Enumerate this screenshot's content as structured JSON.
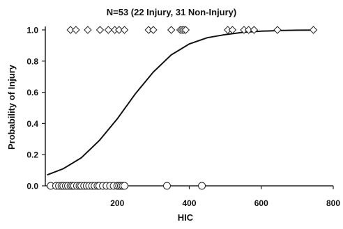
{
  "chart_data": {
    "type": "scatter",
    "title": "N=53 (22 Injury, 31 Non-Injury)",
    "xlabel": "HIC",
    "ylabel": "Probability of Injury",
    "xlim": [
      0,
      800
    ],
    "ylim": [
      0,
      1
    ],
    "x_ticks": [
      "200",
      "400",
      "600",
      "800"
    ],
    "y_ticks": [
      "0.0",
      "0.2",
      "0.4",
      "0.6",
      "0.8",
      "1.0"
    ],
    "grid": false,
    "legend": "none",
    "series": [
      {
        "marker": "diamond",
        "values": [
          {
            "x": 70,
            "y": 1
          },
          {
            "x": 85,
            "y": 1
          },
          {
            "x": 118,
            "y": 1
          },
          {
            "x": 152,
            "y": 1
          },
          {
            "x": 175,
            "y": 1
          },
          {
            "x": 193,
            "y": 1
          },
          {
            "x": 205,
            "y": 1
          },
          {
            "x": 220,
            "y": 1
          },
          {
            "x": 287,
            "y": 1
          },
          {
            "x": 300,
            "y": 1
          },
          {
            "x": 350,
            "y": 1
          },
          {
            "x": 375,
            "y": 1
          },
          {
            "x": 380,
            "y": 1
          },
          {
            "x": 385,
            "y": 1
          },
          {
            "x": 390,
            "y": 1
          },
          {
            "x": 507,
            "y": 1
          },
          {
            "x": 520,
            "y": 1
          },
          {
            "x": 552,
            "y": 1
          },
          {
            "x": 565,
            "y": 1
          },
          {
            "x": 580,
            "y": 1
          },
          {
            "x": 645,
            "y": 1
          },
          {
            "x": 745,
            "y": 1
          }
        ]
      },
      {
        "marker": "circle",
        "values": [
          {
            "x": 15,
            "y": 0
          },
          {
            "x": 30,
            "y": 0
          },
          {
            "x": 38,
            "y": 0
          },
          {
            "x": 45,
            "y": 0
          },
          {
            "x": 50,
            "y": 0
          },
          {
            "x": 57,
            "y": 0
          },
          {
            "x": 63,
            "y": 0
          },
          {
            "x": 70,
            "y": 0
          },
          {
            "x": 75,
            "y": 0
          },
          {
            "x": 80,
            "y": 0
          },
          {
            "x": 88,
            "y": 0
          },
          {
            "x": 95,
            "y": 0
          },
          {
            "x": 100,
            "y": 0
          },
          {
            "x": 108,
            "y": 0
          },
          {
            "x": 115,
            "y": 0
          },
          {
            "x": 122,
            "y": 0
          },
          {
            "x": 130,
            "y": 0
          },
          {
            "x": 137,
            "y": 0
          },
          {
            "x": 145,
            "y": 0
          },
          {
            "x": 150,
            "y": 0
          },
          {
            "x": 160,
            "y": 0
          },
          {
            "x": 170,
            "y": 0
          },
          {
            "x": 180,
            "y": 0
          },
          {
            "x": 190,
            "y": 0
          },
          {
            "x": 200,
            "y": 0
          },
          {
            "x": 205,
            "y": 0
          },
          {
            "x": 210,
            "y": 0
          },
          {
            "x": 215,
            "y": 0
          },
          {
            "x": 220,
            "y": 0
          },
          {
            "x": 338,
            "y": 0
          },
          {
            "x": 435,
            "y": 0
          }
        ]
      },
      {
        "marker": "line",
        "curve": "logistic",
        "values": [
          {
            "x": 5,
            "y": 0.07
          },
          {
            "x": 50,
            "y": 0.11
          },
          {
            "x": 100,
            "y": 0.18
          },
          {
            "x": 150,
            "y": 0.29
          },
          {
            "x": 200,
            "y": 0.43
          },
          {
            "x": 250,
            "y": 0.59
          },
          {
            "x": 300,
            "y": 0.73
          },
          {
            "x": 350,
            "y": 0.84
          },
          {
            "x": 400,
            "y": 0.91
          },
          {
            "x": 450,
            "y": 0.95
          },
          {
            "x": 500,
            "y": 0.97
          },
          {
            "x": 550,
            "y": 0.985
          },
          {
            "x": 600,
            "y": 0.992
          },
          {
            "x": 650,
            "y": 0.996
          },
          {
            "x": 700,
            "y": 0.998
          },
          {
            "x": 750,
            "y": 0.999
          }
        ]
      }
    ]
  }
}
